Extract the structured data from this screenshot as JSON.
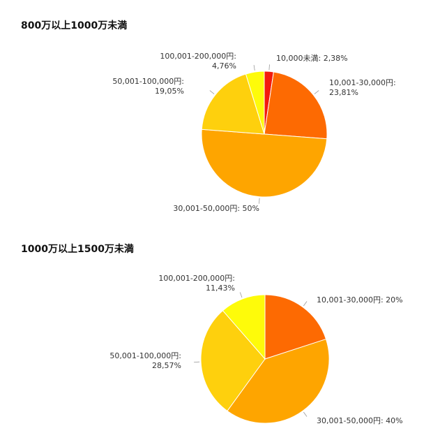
{
  "chart_data": [
    {
      "type": "pie",
      "title": "800万以上1000万未満",
      "slices": [
        {
          "label": "10,000未満",
          "value": 2.38,
          "value_text": "2,38%",
          "color": "#f31b0d"
        },
        {
          "label": "10,001-30,000円",
          "value": 23.81,
          "value_text": "23,81%",
          "color": "#fd6a02"
        },
        {
          "label": "30,001-50,000円",
          "value": 50,
          "value_text": "50%",
          "color": "#fea500"
        },
        {
          "label": "50,001-100,000円",
          "value": 19.05,
          "value_text": "19,05%",
          "color": "#fed00d"
        },
        {
          "label": "100,001-200,000円",
          "value": 4.76,
          "value_text": "4,76%",
          "color": "#fefb0a"
        }
      ]
    },
    {
      "type": "pie",
      "title": "1000万以上1500万未満",
      "slices": [
        {
          "label": "10,001-30,000円",
          "value": 20,
          "value_text": "20%",
          "color": "#fd6a02"
        },
        {
          "label": "30,001-50,000円",
          "value": 40,
          "value_text": "40%",
          "color": "#fea500"
        },
        {
          "label": "50,001-100,000円",
          "value": 28.57,
          "value_text": "28,57%",
          "color": "#fed00d"
        },
        {
          "label": "100,001-200,000円",
          "value": 11.43,
          "value_text": "11,43%",
          "color": "#fefb0a"
        }
      ]
    }
  ]
}
